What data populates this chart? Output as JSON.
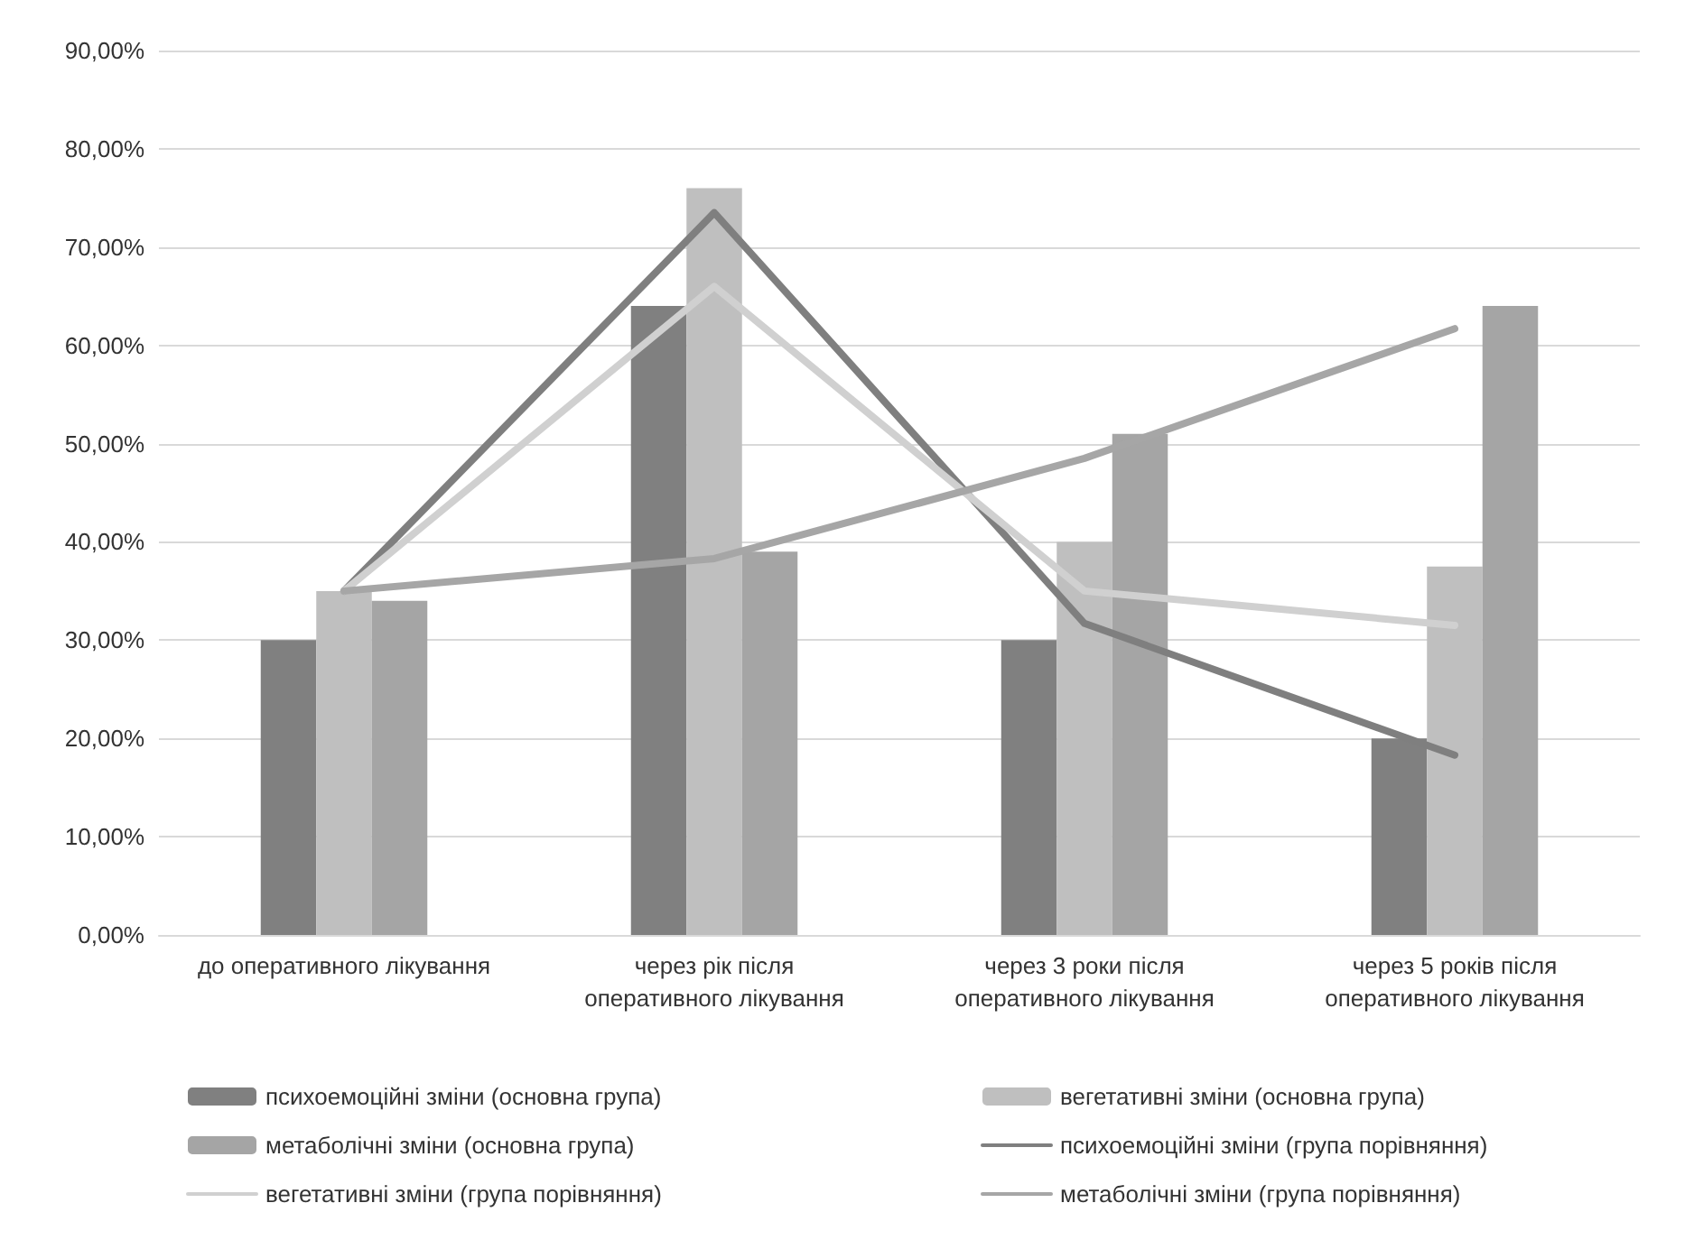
{
  "chart_data": {
    "type": "bar",
    "categories": [
      "до оперативного лікування",
      "через рік після\nоперативного лікування",
      "через 3 роки після\nоперативного лікування",
      "через 5 років після\nоперативного лікування"
    ],
    "series": [
      {
        "name": "психоемоційні зміни (основна група)",
        "color": "#808080",
        "values": [
          30,
          64,
          30,
          20
        ]
      },
      {
        "name": "вегетативні зміни (основна група)",
        "color": "#bfbfbf",
        "values": [
          35,
          76,
          40,
          37.5
        ]
      },
      {
        "name": "метаболічні зміни (основна група)",
        "color": "#a5a5a5",
        "values": [
          34,
          39,
          51,
          64
        ]
      },
      {
        "name": "психоемоційні зміни (група порівняння)",
        "type": "line",
        "color": "#7f7f7f",
        "values": [
          35,
          73.5,
          31.7,
          18.3
        ]
      },
      {
        "name": "вегетативні зміни (група порівняння)",
        "type": "line",
        "color": "#d0d0d0",
        "values": [
          35,
          66,
          35,
          31.5
        ]
      },
      {
        "name": "метаболічні зміни (група порівняння)",
        "type": "line",
        "color": "#a6a6a6",
        "values": [
          35,
          38.3,
          48.5,
          61.7
        ]
      }
    ],
    "ylim": [
      0,
      90
    ],
    "yticks": [
      {
        "value": 0,
        "label": "0,00%"
      },
      {
        "value": 10,
        "label": "10,00%"
      },
      {
        "value": 20,
        "label": "20,00%"
      },
      {
        "value": 30,
        "label": "30,00%"
      },
      {
        "value": 40,
        "label": "40,00%"
      },
      {
        "value": 50,
        "label": "50,00%"
      },
      {
        "value": 60,
        "label": "60,00%"
      },
      {
        "value": 70,
        "label": "70,00%"
      },
      {
        "value": 80,
        "label": "80,00%"
      },
      {
        "value": 90,
        "label": "90,00%"
      }
    ],
    "grid": "y",
    "legend": "bottom",
    "marker": "none",
    "line_style": "solid"
  }
}
